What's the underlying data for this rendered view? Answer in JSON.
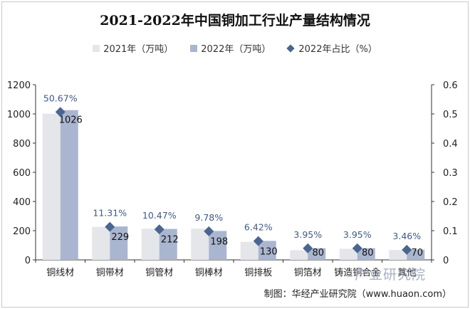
{
  "chart_data": {
    "type": "bar",
    "title": "2021-2022年中国铜加工行业产量结构情况",
    "categories": [
      "铜线材",
      "铜带材",
      "铜管材",
      "铜棒材",
      "铜排板",
      "铜箔材",
      "铸造铜合金",
      "其他"
    ],
    "series": [
      {
        "name": "2021年（万吨）",
        "type": "bar",
        "axis": "left",
        "color": "#e4e6ea",
        "values": [
          1002,
          226,
          214,
          214,
          124,
          66,
          76,
          68
        ]
      },
      {
        "name": "2022年（万吨）",
        "type": "bar",
        "axis": "left",
        "color": "#aab6cf",
        "values": [
          1026,
          229,
          212,
          198,
          130,
          80,
          80,
          70
        ]
      },
      {
        "name": "2022年占比（%）",
        "type": "line-marker",
        "axis": "right",
        "color": "#4a6590",
        "values": [
          0.5067,
          0.1131,
          0.1047,
          0.0978,
          0.0642,
          0.0395,
          0.0395,
          0.0346
        ]
      }
    ],
    "bar_labels": [
      "1026",
      "229",
      "212",
      "198",
      "130",
      "80",
      "80",
      "70"
    ],
    "pct_labels": [
      "50.67%",
      "11.31%",
      "10.47%",
      "9.78%",
      "6.42%",
      "3.95%",
      "3.95%",
      "3.46%"
    ],
    "y_left": {
      "lim": [
        0,
        1200
      ],
      "ticks": [
        "0",
        "200",
        "400",
        "600",
        "800",
        "1000",
        "1200"
      ]
    },
    "y_right": {
      "lim": [
        0,
        0.6
      ],
      "ticks": [
        "0",
        "0.1",
        "0.2",
        "0.3",
        "0.4",
        "0.5",
        "0.6"
      ]
    },
    "grid": false,
    "legend_position": "top"
  },
  "footer": {
    "source": "制图：华经产业研究院（www.huaon.com）",
    "watermark": "产业研究院"
  }
}
